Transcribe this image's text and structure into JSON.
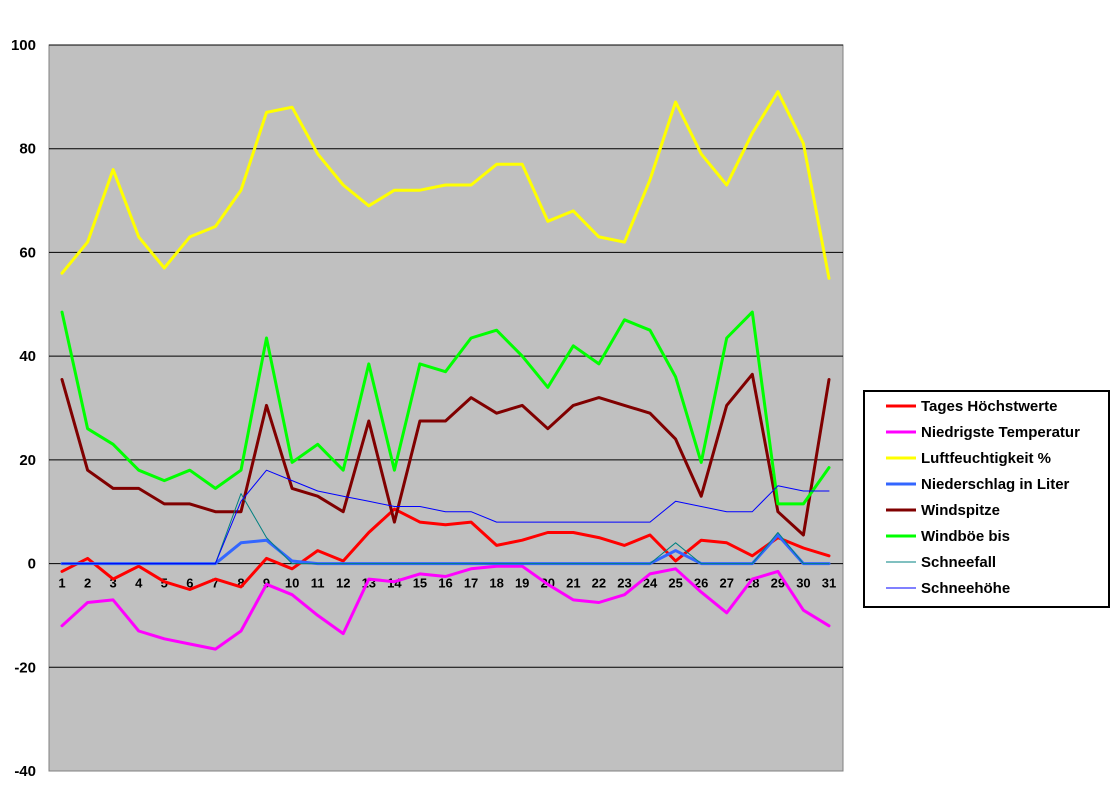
{
  "chart_data": {
    "type": "line",
    "title": "",
    "xlabel": "",
    "ylabel": "",
    "ylim": [
      -40,
      100
    ],
    "yticks": [
      -40,
      -20,
      0,
      20,
      40,
      60,
      80,
      100
    ],
    "grid": "horizontal",
    "legend_position": "right",
    "plot_background": "#C0C0C0",
    "categories": [
      "1",
      "2",
      "3",
      "4",
      "5",
      "6",
      "7",
      "8",
      "9",
      "10",
      "11",
      "12",
      "13",
      "14",
      "15",
      "16",
      "17",
      "18",
      "19",
      "20",
      "21",
      "22",
      "23",
      "24",
      "25",
      "26",
      "27",
      "28",
      "29",
      "30",
      "31"
    ],
    "series": [
      {
        "name": "Tages Höchstwerte",
        "color": "#FF0000",
        "width": 3,
        "values": [
          -1.5,
          1.0,
          -3.0,
          -0.5,
          -3.5,
          -5.0,
          -3.0,
          -4.5,
          1.0,
          -1.0,
          2.5,
          0.5,
          6.0,
          10.5,
          8.0,
          7.5,
          8.0,
          3.5,
          4.5,
          6.0,
          6.0,
          5.0,
          3.5,
          5.5,
          0.5,
          4.5,
          4.0,
          1.5,
          5.0,
          3.0,
          1.5
        ]
      },
      {
        "name": "Niedrigste Temperatur",
        "color": "#FF00FF",
        "width": 3,
        "values": [
          -12.0,
          -7.5,
          -7.0,
          -13.0,
          -14.5,
          -15.5,
          -16.5,
          -13.0,
          -4.0,
          -6.0,
          -10.0,
          -13.5,
          -3.0,
          -3.5,
          -2.0,
          -2.5,
          -1.0,
          -0.5,
          -0.5,
          -4.0,
          -7.0,
          -7.5,
          -6.0,
          -2.0,
          -1.0,
          -5.5,
          -9.5,
          -3.0,
          -1.5,
          -9.0,
          -12.0
        ]
      },
      {
        "name": "Luftfeuchtigkeit %",
        "color": "#FFFF00",
        "width": 3,
        "values": [
          56,
          62,
          76,
          63,
          57,
          63,
          65,
          72,
          87,
          88,
          79,
          73,
          69,
          72,
          72,
          73,
          73,
          77,
          77,
          66,
          68,
          63,
          62,
          74,
          89,
          79,
          73,
          83,
          91,
          81,
          55
        ]
      },
      {
        "name": "Niederschlag in Liter",
        "color": "#3366FF",
        "width": 3,
        "values": [
          0,
          0,
          0,
          0,
          0,
          0,
          0,
          4.0,
          4.5,
          0.5,
          0,
          0,
          0,
          0,
          0,
          0,
          0,
          0,
          0,
          0,
          0,
          0,
          0,
          0,
          2.5,
          0,
          0,
          0,
          5.5,
          0,
          0
        ]
      },
      {
        "name": "Windspitze",
        "color": "#800000",
        "width": 3,
        "values": [
          35.5,
          18.0,
          14.5,
          14.5,
          11.5,
          11.5,
          10.0,
          10.0,
          30.5,
          14.5,
          13.0,
          10.0,
          27.5,
          8.0,
          27.5,
          27.5,
          32.0,
          29.0,
          30.5,
          26.0,
          30.5,
          32.0,
          30.5,
          29.0,
          24.0,
          13.0,
          30.5,
          36.5,
          10.0,
          5.5,
          35.5
        ]
      },
      {
        "name": "Windböe bis",
        "color": "#00FF00",
        "width": 3,
        "values": [
          48.5,
          26.0,
          23.0,
          18.0,
          16.0,
          18.0,
          14.5,
          18.0,
          43.5,
          19.5,
          23.0,
          18.0,
          38.5,
          18.0,
          38.5,
          37.0,
          43.5,
          45.0,
          40.0,
          34.0,
          42.0,
          38.5,
          47.0,
          45.0,
          36.0,
          19.5,
          43.5,
          48.5,
          11.5,
          11.5,
          18.5
        ]
      },
      {
        "name": "Schneefall",
        "color": "#008080",
        "width": 1,
        "values": [
          0,
          0,
          0,
          0,
          0,
          0,
          0,
          13.5,
          5.0,
          0,
          0,
          0,
          0,
          0,
          0,
          0,
          0,
          0,
          0,
          0,
          0,
          0,
          0,
          0,
          4.0,
          0,
          0,
          0,
          6.0,
          0,
          0
        ]
      },
      {
        "name": "Schneehöhe",
        "color": "#0000FF",
        "width": 1,
        "values": [
          0,
          0,
          0,
          0,
          0,
          0,
          0,
          12.0,
          18.0,
          16.0,
          14.0,
          13.0,
          12.0,
          11.0,
          11.0,
          10.0,
          10.0,
          8.0,
          8.0,
          8.0,
          8.0,
          8.0,
          8.0,
          8.0,
          12.0,
          11.0,
          10.0,
          10.0,
          15.0,
          14.0,
          14.0
        ]
      }
    ]
  }
}
